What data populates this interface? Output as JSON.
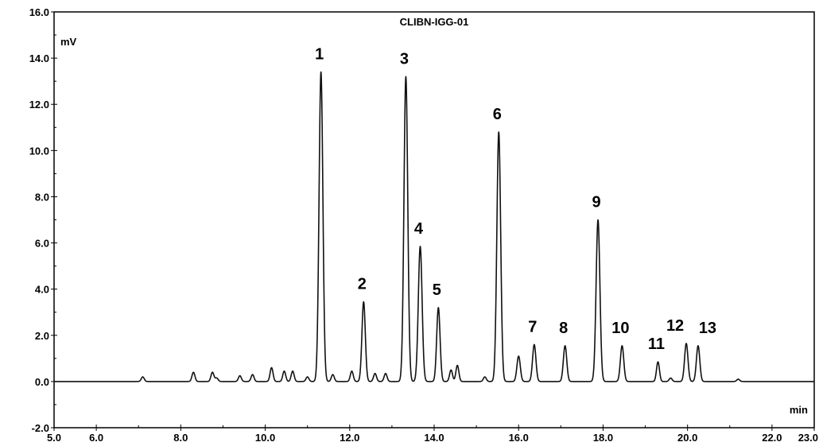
{
  "chart_data": {
    "type": "line",
    "title": "CLIBN-IGG-01",
    "xlabel": "min",
    "ylabel": "mV",
    "xlim": [
      5.0,
      23.0
    ],
    "ylim": [
      -2.0,
      16.0
    ],
    "x_tick_labels": [
      "5.0",
      "6.0",
      "8.0",
      "10.0",
      "12.0",
      "14.0",
      "16.0",
      "18.0",
      "20.0",
      "22.0",
      "23.0"
    ],
    "y_tick_labels": [
      "-2.0",
      "0.0",
      "2.0",
      "4.0",
      "6.0",
      "8.0",
      "10.0",
      "12.0",
      "14.0",
      "16.0"
    ],
    "grid": false,
    "baseline": 0.0,
    "peaks": [
      {
        "label": "1",
        "x": 11.32,
        "y": 13.4
      },
      {
        "label": "2",
        "x": 12.33,
        "y": 3.45
      },
      {
        "label": "3",
        "x": 13.33,
        "y": 13.2
      },
      {
        "label": "4",
        "x": 13.67,
        "y": 5.85
      },
      {
        "label": "5",
        "x": 14.1,
        "y": 3.2
      },
      {
        "label": "6",
        "x": 15.53,
        "y": 10.8
      },
      {
        "label": "7",
        "x": 16.37,
        "y": 1.6
      },
      {
        "label": "8",
        "x": 17.1,
        "y": 1.55
      },
      {
        "label": "9",
        "x": 17.88,
        "y": 7.0
      },
      {
        "label": "10",
        "x": 18.45,
        "y": 1.55
      },
      {
        "label": "11",
        "x": 19.3,
        "y": 0.85
      },
      {
        "label": "12",
        "x": 19.97,
        "y": 1.65
      },
      {
        "label": "13",
        "x": 20.25,
        "y": 1.55
      }
    ],
    "minor_peaks": [
      {
        "x": 7.1,
        "y": 0.2
      },
      {
        "x": 8.3,
        "y": 0.4
      },
      {
        "x": 8.75,
        "y": 0.4
      },
      {
        "x": 8.85,
        "y": 0.15
      },
      {
        "x": 9.4,
        "y": 0.25
      },
      {
        "x": 9.7,
        "y": 0.3
      },
      {
        "x": 10.15,
        "y": 0.6
      },
      {
        "x": 10.45,
        "y": 0.45
      },
      {
        "x": 10.65,
        "y": 0.45
      },
      {
        "x": 11.0,
        "y": 0.2
      },
      {
        "x": 11.6,
        "y": 0.3
      },
      {
        "x": 12.05,
        "y": 0.45
      },
      {
        "x": 12.6,
        "y": 0.35
      },
      {
        "x": 12.85,
        "y": 0.35
      },
      {
        "x": 14.4,
        "y": 0.5
      },
      {
        "x": 14.55,
        "y": 0.7
      },
      {
        "x": 15.2,
        "y": 0.2
      },
      {
        "x": 16.0,
        "y": 1.1
      },
      {
        "x": 19.6,
        "y": 0.15
      },
      {
        "x": 21.2,
        "y": 0.1
      }
    ]
  }
}
